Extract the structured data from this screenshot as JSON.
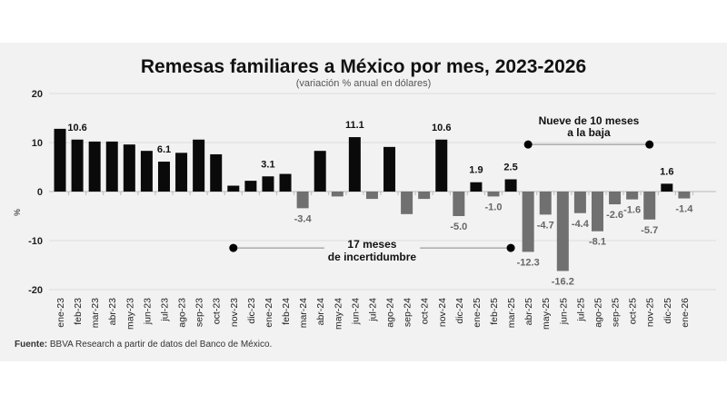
{
  "chart_data": {
    "type": "bar",
    "title": "Remesas familiares a México por mes, 2023-2026",
    "subtitle": "(variación % anual en dólares)",
    "ylabel": "%",
    "xlabel": "",
    "ylim": [
      -20,
      20
    ],
    "yticks": [
      20,
      10,
      0,
      -10,
      -20
    ],
    "grid": true,
    "categories": [
      "ene-23",
      "feb-23",
      "mar-23",
      "abr-23",
      "may-23",
      "jun-23",
      "jul-23",
      "ago-23",
      "sep-23",
      "oct-23",
      "nov-23",
      "dic-23",
      "ene-24",
      "feb-24",
      "mar-24",
      "abr-24",
      "may-24",
      "jun-24",
      "jul-24",
      "ago-24",
      "sep-24",
      "oct-24",
      "nov-24",
      "dic-24",
      "ene-25",
      "feb-25",
      "mar-25",
      "abr-25",
      "may-25",
      "jun-25",
      "jul-25",
      "ago-25",
      "sep-25",
      "oct-25",
      "nov-25",
      "dic-25",
      "ene-26"
    ],
    "values": [
      12.8,
      10.6,
      10.2,
      10.2,
      9.6,
      8.3,
      6.1,
      7.9,
      10.6,
      7.6,
      1.2,
      2.2,
      3.1,
      3.6,
      -3.4,
      8.3,
      -1.0,
      11.1,
      -1.5,
      9.1,
      -4.6,
      -1.5,
      10.6,
      -5.0,
      1.9,
      -1.0,
      2.5,
      -12.3,
      -4.7,
      -16.2,
      -4.4,
      -8.1,
      -2.6,
      -1.6,
      -5.7,
      1.6,
      -1.4
    ],
    "data_labels": [
      {
        "category": "feb-23",
        "text": "10.6"
      },
      {
        "category": "jul-23",
        "text": "6.1"
      },
      {
        "category": "ene-24",
        "text": "3.1"
      },
      {
        "category": "mar-24",
        "text": "-3.4"
      },
      {
        "category": "jun-24",
        "text": "11.1"
      },
      {
        "category": "nov-24",
        "text": "10.6"
      },
      {
        "category": "dic-24",
        "text": "-5.0"
      },
      {
        "category": "ene-25",
        "text": "1.9"
      },
      {
        "category": "feb-25",
        "text": "-1.0"
      },
      {
        "category": "mar-25",
        "text": "2.5"
      },
      {
        "category": "abr-25",
        "text": "-12.3"
      },
      {
        "category": "may-25",
        "text": "-4.7"
      },
      {
        "category": "jun-25",
        "text": "-16.2"
      },
      {
        "category": "jul-25",
        "text": "-4.4"
      },
      {
        "category": "ago-25",
        "text": "-8.1"
      },
      {
        "category": "sep-25",
        "text": "-2.6"
      },
      {
        "category": "oct-25",
        "text": "-1.6"
      },
      {
        "category": "nov-25",
        "text": "-5.7"
      },
      {
        "category": "dic-25",
        "text": "1.6"
      },
      {
        "category": "ene-26",
        "text": "-1.4"
      }
    ],
    "annotations": [
      {
        "lines": [
          "17 meses",
          "de incertidumbre"
        ],
        "from": "nov-23",
        "to": "mar-25",
        "y": -11.5
      },
      {
        "lines": [
          "Nueve de 10 meses",
          "a la baja"
        ],
        "from": "abr-25",
        "to": "nov-25",
        "y": 9.6
      }
    ],
    "colors": {
      "positive": "#0a0a0a",
      "negative": "#707070",
      "grid": "#dcdcdc"
    }
  },
  "source": {
    "label": "Fuente:",
    "text": " BBVA Research a partir de datos del Banco de México."
  }
}
